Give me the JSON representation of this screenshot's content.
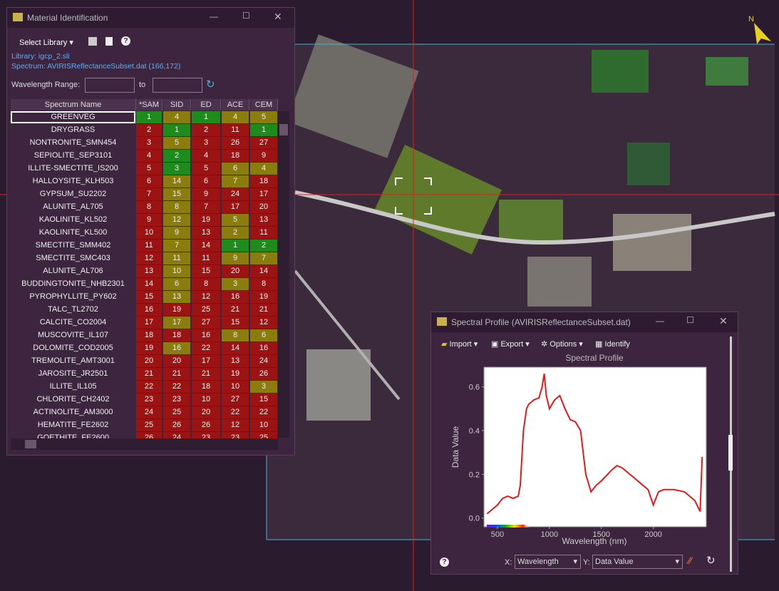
{
  "north": "N",
  "material_window": {
    "title": "Material Identification",
    "select_library": "Select Library",
    "library": "Library: igcp_2.sli",
    "spectrum": "Spectrum: AVIRISReflectanceSubset.dat (166,172)",
    "wavelength_range": "Wavelength Range:",
    "to": "to"
  },
  "table": {
    "columns": [
      "Spectrum Name",
      "*SAM",
      "SID",
      "ED",
      "ACE",
      "CEM"
    ],
    "palette": {
      "g": "#1d8c1d",
      "o": "#8a7d0e",
      "r": "#9b1313"
    },
    "rows": [
      {
        "name": "GREENVEG",
        "ranks": [
          1,
          4,
          1,
          4,
          5
        ],
        "colors": "gogoo"
      },
      {
        "name": "DRYGRASS",
        "ranks": [
          2,
          1,
          2,
          11,
          1
        ],
        "colors": "rgrrg"
      },
      {
        "name": "NONTRONITE_SMN454",
        "ranks": [
          3,
          5,
          3,
          26,
          27
        ],
        "colors": "rorrr"
      },
      {
        "name": "SEPIOLITE_SEP3101",
        "ranks": [
          4,
          2,
          4,
          18,
          9
        ],
        "colors": "rgrrr"
      },
      {
        "name": "ILLITE-SMECTITE_IS200",
        "ranks": [
          5,
          3,
          5,
          6,
          4
        ],
        "colors": "rgroo"
      },
      {
        "name": "HALLOYSITE_KLH503",
        "ranks": [
          6,
          14,
          6,
          7,
          18
        ],
        "colors": "roror"
      },
      {
        "name": "GYPSUM_SU2202",
        "ranks": [
          7,
          15,
          9,
          24,
          17
        ],
        "colors": "rorrr"
      },
      {
        "name": "ALUNITE_AL705",
        "ranks": [
          8,
          8,
          7,
          17,
          20
        ],
        "colors": "rorrr"
      },
      {
        "name": "KAOLINITE_KL502",
        "ranks": [
          9,
          12,
          19,
          5,
          13
        ],
        "colors": "roror"
      },
      {
        "name": "KAOLINITE_KL500",
        "ranks": [
          10,
          9,
          13,
          2,
          11
        ],
        "colors": "roror"
      },
      {
        "name": "SMECTITE_SMM402",
        "ranks": [
          11,
          7,
          14,
          1,
          2
        ],
        "colors": "rorgg"
      },
      {
        "name": "SMECTITE_SMC403",
        "ranks": [
          12,
          11,
          11,
          9,
          7
        ],
        "colors": "roroo"
      },
      {
        "name": "ALUNITE_AL706",
        "ranks": [
          13,
          10,
          15,
          20,
          14
        ],
        "colors": "rorrr"
      },
      {
        "name": "BUDDINGTONITE_NHB2301",
        "ranks": [
          14,
          6,
          8,
          3,
          8
        ],
        "colors": "roror"
      },
      {
        "name": "PYROPHYLLITE_PY602",
        "ranks": [
          15,
          13,
          12,
          16,
          19
        ],
        "colors": "rorrr"
      },
      {
        "name": "TALC_TL2702",
        "ranks": [
          16,
          19,
          25,
          21,
          21
        ],
        "colors": "rrrrr"
      },
      {
        "name": "CALCITE_CO2004",
        "ranks": [
          17,
          17,
          27,
          15,
          12
        ],
        "colors": "rorrr"
      },
      {
        "name": "MUSCOVITE_IL107",
        "ranks": [
          18,
          18,
          16,
          8,
          6
        ],
        "colors": "rrroo"
      },
      {
        "name": "DOLOMITE_COD2005",
        "ranks": [
          19,
          16,
          22,
          14,
          16
        ],
        "colors": "rorrr"
      },
      {
        "name": "TREMOLITE_AMT3001",
        "ranks": [
          20,
          20,
          17,
          13,
          24
        ],
        "colors": "rrrrr"
      },
      {
        "name": "JAROSITE_JR2501",
        "ranks": [
          21,
          21,
          21,
          19,
          26
        ],
        "colors": "rrrrr"
      },
      {
        "name": "ILLITE_IL105",
        "ranks": [
          22,
          22,
          18,
          10,
          3
        ],
        "colors": "rrrro"
      },
      {
        "name": "CHLORITE_CH2402",
        "ranks": [
          23,
          23,
          10,
          27,
          15
        ],
        "colors": "rrrrr"
      },
      {
        "name": "ACTINOLITE_AM3000",
        "ranks": [
          24,
          25,
          20,
          22,
          22
        ],
        "colors": "rrrrr"
      },
      {
        "name": "HEMATITE_FE2602",
        "ranks": [
          25,
          26,
          26,
          12,
          10
        ],
        "colors": "rrrrr"
      },
      {
        "name": "GOETHITE_FE2600",
        "ranks": [
          26,
          24,
          23,
          23,
          25
        ],
        "colors": "rrrrr"
      }
    ]
  },
  "spectral_window": {
    "title": "Spectral Profile (AVIRISReflectanceSubset.dat)",
    "import": "Import",
    "export": "Export",
    "options": "Options",
    "identify": "Identify",
    "x_label": "X:",
    "x_select": "Wavelength",
    "y_label": "Y:",
    "y_select": "Data Value"
  },
  "chart_data": {
    "type": "line",
    "title": "Spectral Profile",
    "x_axis_label": "Wavelength (nm)",
    "y_axis_label": "Data Value",
    "x": [
      400,
      450,
      500,
      550,
      600,
      650,
      700,
      720,
      750,
      780,
      800,
      850,
      900,
      930,
      950,
      970,
      1000,
      1050,
      1100,
      1150,
      1200,
      1250,
      1300,
      1350,
      1400,
      1450,
      1500,
      1600,
      1650,
      1700,
      1800,
      1900,
      1950,
      2000,
      2050,
      2100,
      2200,
      2300,
      2400,
      2450,
      2470
    ],
    "series": [
      {
        "color": "#e01b1b",
        "values": [
          0.02,
          0.04,
          0.06,
          0.09,
          0.1,
          0.09,
          0.1,
          0.15,
          0.4,
          0.5,
          0.52,
          0.54,
          0.55,
          0.6,
          0.66,
          0.56,
          0.5,
          0.54,
          0.56,
          0.5,
          0.45,
          0.44,
          0.4,
          0.2,
          0.12,
          0.15,
          0.17,
          0.22,
          0.24,
          0.23,
          0.19,
          0.15,
          0.13,
          0.06,
          0.12,
          0.13,
          0.13,
          0.12,
          0.08,
          0.03,
          0.28
        ]
      }
    ],
    "xlim": [
      370,
      2510
    ],
    "ylim": [
      -0.04,
      0.69
    ],
    "xticks": [
      500,
      1000,
      1500,
      2000
    ],
    "yticks": [
      {
        "value": 0,
        "label": "0.0"
      },
      0.2,
      0.4,
      0.6
    ]
  }
}
